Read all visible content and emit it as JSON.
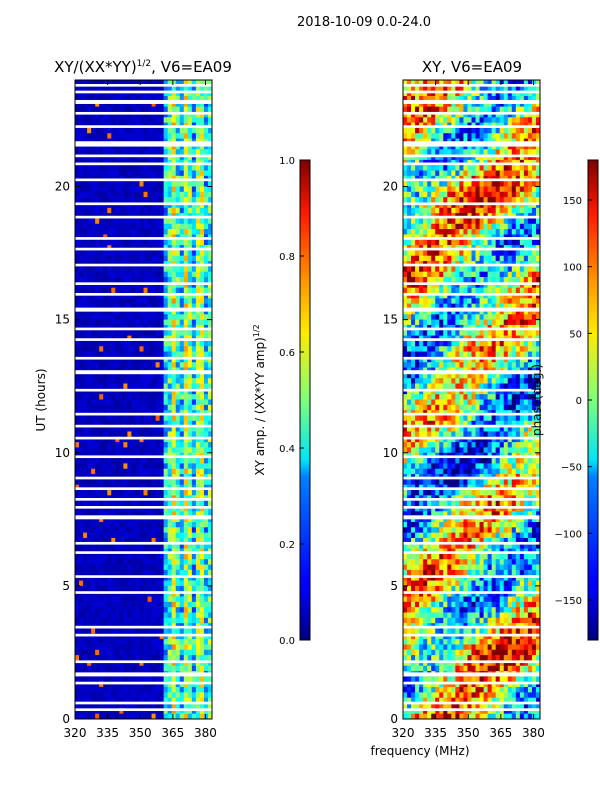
{
  "suptitle": "2018-10-09 0.0-24.0",
  "xlabel": "frequency (MHz)",
  "colors": {
    "background": "#00008f",
    "gap": "#ffffff",
    "axis": "#000000"
  },
  "chart_data": [
    {
      "type": "heatmap",
      "panel": "left",
      "title": "XY/(XX*YY)",
      "title_exp": "1/2",
      "title_suffix": ", V6=EA09",
      "xlabel": "",
      "ylabel": "UT (hours)",
      "x_ticks": [
        "320",
        "335",
        "350",
        "365",
        "380"
      ],
      "x_tick_values": [
        320,
        335,
        350,
        365,
        380
      ],
      "xlim": [
        320,
        383
      ],
      "y_ticks": [
        "0",
        "5",
        "10",
        "15",
        "20"
      ],
      "y_tick_values": [
        0,
        5,
        10,
        15,
        20
      ],
      "ylim": [
        0,
        24
      ],
      "colorbar": {
        "label": "XY amp. / (XX*YY amp)",
        "label_exp": "1/2",
        "ticks": [
          "0.0",
          "0.2",
          "0.4",
          "0.6",
          "0.8",
          "1.0"
        ],
        "tick_values": [
          0.0,
          0.2,
          0.4,
          0.6,
          0.8,
          1.0
        ],
        "range": [
          0.0,
          1.0
        ]
      },
      "bright_band_mhz": [
        360,
        383
      ],
      "low_band_mean": 0.03,
      "high_band_mean": 0.45
    },
    {
      "type": "heatmap",
      "panel": "right",
      "title": "XY, V6=EA09",
      "xlabel": "frequency (MHz)",
      "ylabel": "",
      "x_ticks": [
        "320",
        "335",
        "350",
        "365",
        "380"
      ],
      "x_tick_values": [
        320,
        335,
        350,
        365,
        380
      ],
      "xlim": [
        320,
        383
      ],
      "y_ticks": [
        "0",
        "5",
        "10",
        "15",
        "20"
      ],
      "y_tick_values": [
        0,
        5,
        10,
        15,
        20
      ],
      "ylim": [
        0,
        24
      ],
      "colorbar": {
        "label": "phase(deg.)",
        "ticks": [
          "150",
          "100",
          "50",
          "0",
          "−50",
          "−100",
          "−150"
        ],
        "tick_values": [
          150,
          100,
          50,
          0,
          -50,
          -100,
          -150
        ],
        "range": [
          -180,
          180
        ]
      }
    }
  ],
  "flagged_gaps_ut": [
    [
      0.3,
      0.4
    ],
    [
      0.55,
      0.65
    ],
    [
      1.3,
      1.4
    ],
    [
      1.6,
      1.75
    ],
    [
      2.1,
      2.2
    ],
    [
      3.1,
      3.2
    ],
    [
      3.4,
      3.5
    ],
    [
      4.7,
      4.8
    ],
    [
      5.3,
      5.4
    ],
    [
      6.2,
      6.3
    ],
    [
      6.55,
      6.65
    ],
    [
      7.5,
      7.65
    ],
    [
      7.9,
      8.0
    ],
    [
      8.2,
      8.3
    ],
    [
      8.6,
      8.7
    ],
    [
      9.0,
      9.1
    ],
    [
      9.8,
      9.9
    ],
    [
      10.5,
      10.6
    ],
    [
      10.95,
      11.05
    ],
    [
      11.4,
      11.5
    ],
    [
      12.3,
      12.4
    ],
    [
      12.95,
      13.1
    ],
    [
      13.5,
      13.6
    ],
    [
      14.2,
      14.3
    ],
    [
      14.6,
      14.7
    ],
    [
      15.3,
      15.45
    ],
    [
      15.9,
      16.0
    ],
    [
      16.3,
      16.4
    ],
    [
      17.0,
      17.1
    ],
    [
      17.6,
      17.7
    ],
    [
      18.0,
      18.1
    ],
    [
      18.8,
      18.9
    ],
    [
      19.3,
      19.4
    ],
    [
      20.2,
      20.3
    ],
    [
      20.8,
      20.9
    ],
    [
      21.1,
      21.2
    ],
    [
      21.5,
      21.7
    ],
    [
      22.2,
      22.3
    ],
    [
      22.7,
      22.8
    ],
    [
      23.1,
      23.25
    ],
    [
      23.5,
      23.6
    ],
    [
      23.75,
      23.85
    ]
  ]
}
